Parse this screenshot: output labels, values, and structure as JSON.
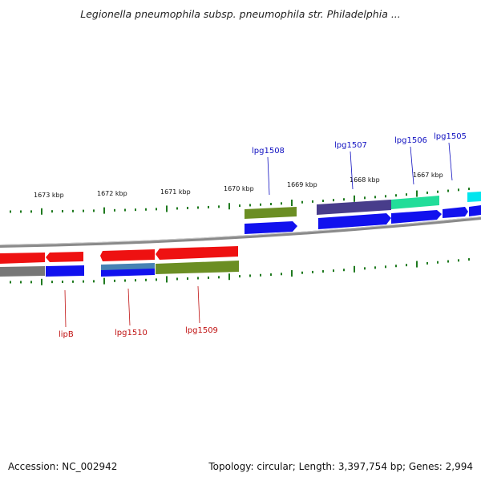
{
  "title": "Legionella pneumophila subsp. pneumophila str. Philadelphia ...",
  "footer": {
    "accession": "Accession: NC_002942",
    "summary": "Topology: circular; Length: 3,397,754 bp; Genes: 2,994"
  },
  "kbp_ticks": [
    "1673 kbp",
    "1672 kbp",
    "1671 kbp",
    "1670 kbp",
    "1669 kbp",
    "1668 kbp",
    "1667 kbp"
  ],
  "gene_labels_forward": [
    "lpg1508",
    "lpg1507",
    "lpg1506",
    "lpg1505"
  ],
  "gene_labels_reverse": [
    "lipB",
    "lpg1510",
    "lpg1509"
  ],
  "colors": {
    "backbone": "#8a8a8a",
    "tick": "#1f7a1f",
    "red": "#ee1111",
    "blue": "#1111ee",
    "olive": "#6b8e23",
    "slate": "#483d8b",
    "spring": "#22dd99",
    "cyan": "#00e5ee",
    "gray": "#777777",
    "steel": "#4682b4"
  }
}
